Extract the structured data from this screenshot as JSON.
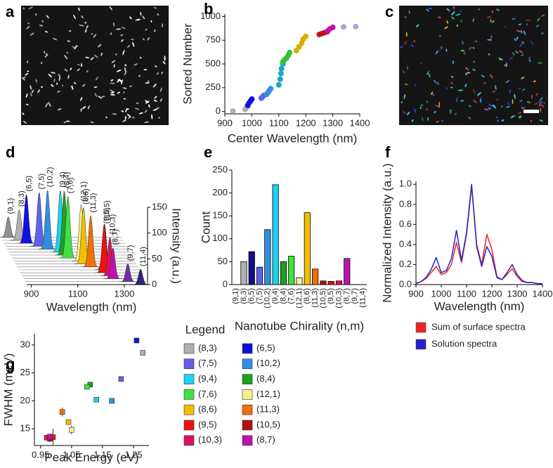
{
  "chart_data": [
    {
      "type": "image",
      "panel": "a"
    },
    {
      "type": "scatter",
      "panel": "b",
      "xlabel": "Center Wavelength (nm)",
      "ylabel": "Sorted Number",
      "xlim": [
        900,
        1400
      ],
      "xticks": [
        900,
        1000,
        1100,
        1200,
        1300,
        1400
      ],
      "ylim": [
        -25,
        1025
      ],
      "yticks": [
        0,
        250,
        500,
        750,
        1000
      ],
      "series": [
        {
          "color": "#b0b0b0",
          "x": [
            930,
            975,
            980,
            985
          ],
          "y": [
            5,
            20,
            40,
            55
          ]
        },
        {
          "color": "#1010e0",
          "x": [
            985,
            990,
            995,
            1000
          ],
          "y": [
            65,
            90,
            110,
            130
          ]
        },
        {
          "color": "#6060e8",
          "x": [
            1035,
            1040,
            1045
          ],
          "y": [
            140,
            155,
            170
          ]
        },
        {
          "color": "#3090e0",
          "x": [
            1055,
            1060,
            1065,
            1070
          ],
          "y": [
            180,
            200,
            220,
            240
          ]
        },
        {
          "color": "#1aa8c8",
          "x": [
            1100,
            1105,
            1108,
            1110,
            1115
          ],
          "y": [
            280,
            340,
            400,
            450,
            500
          ]
        },
        {
          "color": "#30c030",
          "x": [
            1115,
            1120,
            1128,
            1135,
            1140
          ],
          "y": [
            520,
            540,
            560,
            590,
            620
          ]
        },
        {
          "color": "#d8b000",
          "x": [
            1165,
            1175,
            1185,
            1190,
            1200
          ],
          "y": [
            640,
            680,
            720,
            760,
            790
          ]
        },
        {
          "color": "#c01020",
          "x": [
            1250,
            1260,
            1270,
            1280
          ],
          "y": [
            810,
            820,
            830,
            840
          ]
        },
        {
          "color": "#c010b0",
          "x": [
            1282,
            1290,
            1300
          ],
          "y": [
            850,
            870,
            885
          ]
        },
        {
          "color": "#b0a0e0",
          "x": [
            1340,
            1385
          ],
          "y": [
            890,
            892
          ]
        }
      ]
    },
    {
      "type": "image",
      "panel": "c",
      "scale_bar": true
    },
    {
      "type": "waterfall",
      "panel": "d",
      "xlabel": "Wavelength (nm)",
      "ylabel": "Intensity (a.u.)",
      "xlim": [
        880,
        1400
      ],
      "xticks": [
        900,
        1100,
        1300
      ],
      "ylim": [
        0,
        150
      ],
      "yticks": [
        0,
        50,
        100,
        150
      ],
      "categories": [
        "(9,1)",
        "(8,3)",
        "(6,5)",
        "(7,5)",
        "(10,2)",
        "(9,4)",
        "(8,4)",
        "(7,6)",
        "(12,1)",
        "(8,6)",
        "(11,3)",
        "(10,5)",
        "(9,5)",
        "(10,3)",
        "(8,7)",
        "(9,7)",
        "(11,4)"
      ],
      "peaks": [
        912,
        952,
        976,
        1024,
        1053,
        1101,
        1111,
        1120,
        1170,
        1173,
        1197,
        1249,
        1241,
        1259,
        1265,
        1322,
        1370
      ],
      "intensities": [
        40,
        60,
        95,
        105,
        115,
        120,
        125,
        120,
        110,
        110,
        100,
        90,
        90,
        75,
        60,
        35,
        30
      ],
      "colors": [
        "#909090",
        "#b0b0b0",
        "#1010e0",
        "#6060e8",
        "#3090e0",
        "#20d0f0",
        "#20a020",
        "#40e040",
        "#f8f090",
        "#f0c000",
        "#f07000",
        "#b01010",
        "#f01010",
        "#e01060",
        "#c010b0",
        "#7030a0",
        "#302080"
      ]
    },
    {
      "type": "bar",
      "panel": "e",
      "xlabel": "Nanotube Chirality (n,m)",
      "ylabel": "Count",
      "ylim": [
        0,
        250
      ],
      "yticks": [
        0,
        50,
        100,
        150,
        200,
        250
      ],
      "categories": [
        "(9,1)",
        "(8,3)",
        "(6,5)",
        "(7,5)",
        "(10,2)",
        "(9,4)",
        "(8,4)",
        "(7,6)",
        "(12,1)",
        "(8,6)",
        "(11,3)",
        "(10,5)",
        "(9,5)",
        "(10,3)",
        "(8,7)",
        "(9,7)",
        "(11,4)"
      ],
      "values": [
        0,
        50,
        72,
        38,
        120,
        218,
        50,
        62,
        15,
        157,
        34,
        8,
        7,
        8,
        57,
        0,
        0
      ],
      "colors": [
        "#909090",
        "#b0b0b0",
        "#10108a",
        "#6060e8",
        "#3090e0",
        "#20d0f0",
        "#20a020",
        "#40e040",
        "#f8f090",
        "#f0c000",
        "#f07000",
        "#b01010",
        "#f01010",
        "#e01060",
        "#c010b0",
        "#7030a0",
        "#302080"
      ]
    },
    {
      "type": "line",
      "panel": "f",
      "xlabel": "Wavelength (nm)",
      "ylabel": "Normalized Intensity (a.u.)",
      "xlim": [
        900,
        1400
      ],
      "xticks": [
        900,
        1000,
        1100,
        1200,
        1300,
        1400
      ],
      "ylim": [
        0,
        1.03
      ],
      "yticks": [
        {
          "value": 0,
          "label": "0.0"
        },
        0.2,
        0.4,
        0.6,
        0.8,
        {
          "value": 1,
          "label": "1.0"
        }
      ],
      "x": [
        900,
        920,
        940,
        960,
        980,
        1000,
        1020,
        1040,
        1060,
        1080,
        1100,
        1120,
        1140,
        1160,
        1180,
        1200,
        1220,
        1240,
        1260,
        1280,
        1300,
        1320,
        1340,
        1360,
        1380,
        1400
      ],
      "series": [
        {
          "name": "Sum of surface spectra",
          "color": "#ee2222",
          "values": [
            0.01,
            0.03,
            0.06,
            0.12,
            0.18,
            0.1,
            0.12,
            0.2,
            0.42,
            0.22,
            0.5,
            0.98,
            0.4,
            0.2,
            0.5,
            0.35,
            0.08,
            0.05,
            0.1,
            0.16,
            0.08,
            0.03,
            0.02,
            0.02,
            0.01,
            0.01
          ]
        },
        {
          "name": "Solution spectra",
          "color": "#2222cc",
          "values": [
            0.01,
            0.03,
            0.07,
            0.15,
            0.27,
            0.12,
            0.14,
            0.26,
            0.54,
            0.24,
            0.52,
            1.0,
            0.38,
            0.18,
            0.38,
            0.28,
            0.07,
            0.05,
            0.12,
            0.2,
            0.1,
            0.04,
            0.02,
            0.02,
            0.01,
            0.01
          ]
        }
      ]
    },
    {
      "type": "errorbar",
      "panel": "g",
      "xlabel": "Peak Energy (eV)",
      "ylabel": "FWHM (meV)",
      "legend_title": "Legend",
      "xlim": [
        0.93,
        1.3
      ],
      "xticks": [
        0.95,
        1.05,
        1.15,
        1.25
      ],
      "ylim": [
        12,
        32
      ],
      "yticks": [
        15,
        20,
        25,
        30
      ],
      "series": [
        {
          "name": "(8,3)",
          "color": "#b0b0b0",
          "x": [
            1.28
          ],
          "y": [
            28.6
          ],
          "errors": [
            0.4
          ]
        },
        {
          "name": "(6,5)",
          "color": "#1010e0",
          "x": [
            1.26
          ],
          "y": [
            30.8
          ],
          "errors": [
            0.3
          ]
        },
        {
          "name": "(7,5)",
          "color": "#6060e8",
          "x": [
            1.21
          ],
          "y": [
            23.9
          ],
          "errors": [
            0.4
          ]
        },
        {
          "name": "(10,2)",
          "color": "#3090e0",
          "x": [
            1.18
          ],
          "y": [
            20.0
          ],
          "errors": [
            0.3
          ]
        },
        {
          "name": "(9,4)",
          "color": "#20d0f0",
          "x": [
            1.13
          ],
          "y": [
            20.2
          ],
          "errors": [
            0.3
          ]
        },
        {
          "name": "(8,4)",
          "color": "#20a020",
          "x": [
            1.11
          ],
          "y": [
            22.9
          ],
          "errors": [
            0.4
          ]
        },
        {
          "name": "(7,6)",
          "color": "#40e040",
          "x": [
            1.1
          ],
          "y": [
            22.5
          ],
          "errors": [
            0.4
          ]
        },
        {
          "name": "(12,1)",
          "color": "#f8f090",
          "x": [
            1.05
          ],
          "y": [
            14.8
          ],
          "errors": [
            0.8
          ]
        },
        {
          "name": "(8,6)",
          "color": "#f0c000",
          "x": [
            1.04
          ],
          "y": [
            16.2
          ],
          "errors": [
            0.4
          ]
        },
        {
          "name": "(11,3)",
          "color": "#f07000",
          "x": [
            1.02
          ],
          "y": [
            18.0
          ],
          "errors": [
            0.8
          ]
        },
        {
          "name": "(9,5)",
          "color": "#f01010",
          "x": [
            0.99
          ],
          "y": [
            13.5
          ],
          "errors": [
            1.5
          ]
        },
        {
          "name": "(10,5)",
          "color": "#b01010",
          "x": [
            0.98
          ],
          "y": [
            13.2
          ],
          "errors": [
            0.6
          ]
        },
        {
          "name": "(10,3)",
          "color": "#e01060",
          "x": [
            0.97
          ],
          "y": [
            13.4
          ],
          "errors": [
            0.5
          ]
        },
        {
          "name": "(8,7)",
          "color": "#c010b0",
          "x": [
            0.98
          ],
          "y": [
            13.6
          ],
          "errors": [
            0.5
          ]
        }
      ]
    }
  ]
}
